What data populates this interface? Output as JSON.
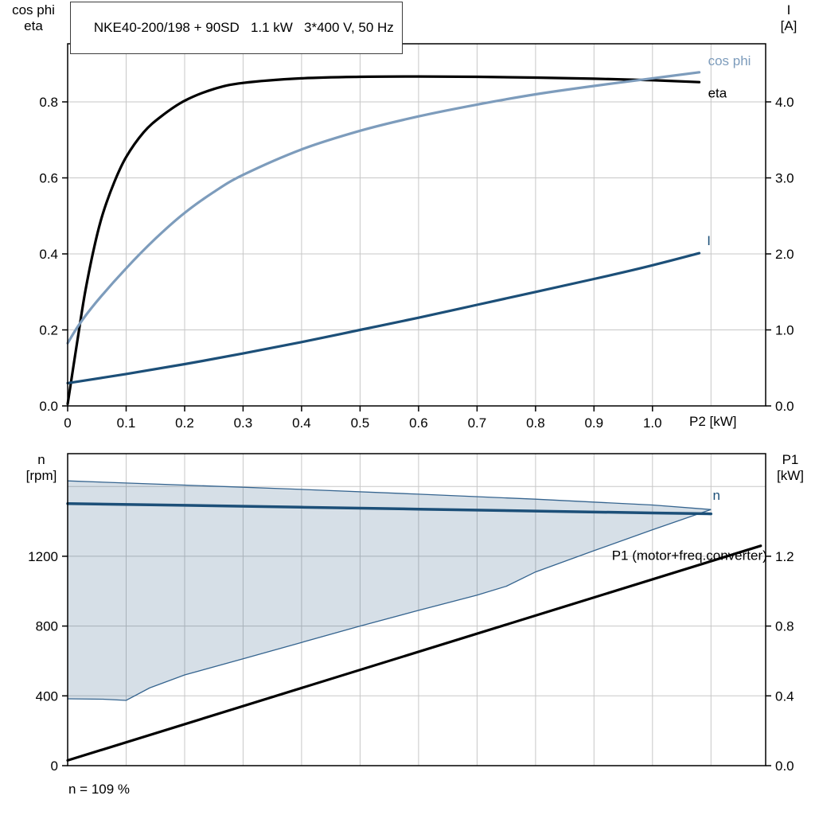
{
  "title_box": {
    "text": "NKE40-200/198 + 90SD   1.1 kW   3*400 V, 50 Hz"
  },
  "footnote": "n = 109 %",
  "colors": {
    "grid": "#c7c7c7",
    "axis": "#000000",
    "eta_black": "#000000",
    "cos_phi_blue": "#7d9cbc",
    "current_navy": "#1c4f78",
    "speed_navy": "#1c4f78",
    "band_fill": "rgba(28,79,120,0.18)",
    "band_edge": "#35648f"
  },
  "axes_corner_labels": {
    "top_left": {
      "line1": "cos phi",
      "line2": "eta"
    },
    "top_right": {
      "line1": "I",
      "line2": "[A]"
    },
    "bottom_left": {
      "line1": "n",
      "line2": "[rpm]"
    },
    "bottom_right": {
      "line1": "P1",
      "line2": "[kW]"
    }
  },
  "chart_data": [
    {
      "id": "top-chart",
      "type": "line",
      "title": "NKE40-200/198 + 90SD   1.1 kW   3*400 V, 50 Hz",
      "x_axis": {
        "label": "P2 [kW]",
        "range": [
          0,
          1.1935
        ],
        "ticks": [
          0,
          0.1,
          0.2,
          0.3,
          0.4,
          0.5,
          0.6,
          0.7,
          0.8,
          0.9,
          1.0
        ],
        "tick_labels": [
          "0",
          "0.1",
          "0.2",
          "0.3",
          "0.4",
          "0.5",
          "0.6",
          "0.7",
          "0.8",
          "0.9",
          "1.0"
        ],
        "grid": [
          0.1,
          0.2,
          0.3,
          0.4,
          0.5,
          0.6,
          0.7,
          0.8,
          0.9,
          1.0,
          1.1
        ]
      },
      "y_left_axis": {
        "label": "cos phi / eta",
        "range": [
          0,
          0.953
        ],
        "ticks": [
          0,
          0.2,
          0.4,
          0.6,
          0.8
        ],
        "tick_labels": [
          "0.0",
          "0.2",
          "0.4",
          "0.6",
          "0.8"
        ],
        "grid": [
          0.2,
          0.4,
          0.6,
          0.8
        ]
      },
      "y_right_axis": {
        "label": "I [A]",
        "range": [
          0,
          4.765
        ],
        "ticks": [
          0,
          1,
          2,
          3,
          4
        ],
        "tick_labels": [
          "0.0",
          "1.0",
          "2.0",
          "3.0",
          "4.0"
        ]
      },
      "series": [
        {
          "name": "eta",
          "axis": "left",
          "color_key": "eta_black",
          "width": 3.2,
          "smooth": true,
          "x": [
            0,
            0.01,
            0.02,
            0.03,
            0.045,
            0.06,
            0.08,
            0.1,
            0.13,
            0.16,
            0.2,
            0.25,
            0.3,
            0.4,
            0.5,
            0.6,
            0.7,
            0.8,
            0.9,
            1.0,
            1.08
          ],
          "y": [
            0.005,
            0.105,
            0.205,
            0.3,
            0.415,
            0.505,
            0.59,
            0.655,
            0.72,
            0.762,
            0.803,
            0.834,
            0.85,
            0.862,
            0.866,
            0.867,
            0.866,
            0.864,
            0.861,
            0.857,
            0.852
          ]
        },
        {
          "name": "cos phi",
          "axis": "left",
          "color_key": "cos_phi_blue",
          "width": 3.2,
          "smooth": true,
          "x": [
            0,
            0.02,
            0.05,
            0.1,
            0.15,
            0.2,
            0.25,
            0.3,
            0.4,
            0.5,
            0.6,
            0.7,
            0.8,
            0.9,
            1.0,
            1.08
          ],
          "y": [
            0.165,
            0.215,
            0.275,
            0.362,
            0.44,
            0.508,
            0.563,
            0.608,
            0.675,
            0.724,
            0.762,
            0.793,
            0.82,
            0.842,
            0.862,
            0.878
          ]
        },
        {
          "name": "I",
          "axis": "right",
          "color_key": "current_navy",
          "width": 3.2,
          "smooth": true,
          "x": [
            0,
            0.1,
            0.2,
            0.3,
            0.4,
            0.5,
            0.6,
            0.7,
            0.8,
            0.9,
            1.0,
            1.08
          ],
          "y": [
            0.3,
            0.42,
            0.55,
            0.69,
            0.84,
            1.0,
            1.16,
            1.33,
            1.5,
            1.67,
            1.85,
            2.01
          ]
        }
      ],
      "curve_labels": [
        {
          "text": "cos phi",
          "color_key": "cos_phi_blue",
          "axis": "left",
          "x": 1.095,
          "y": 0.896,
          "anchor": "start"
        },
        {
          "text": "eta",
          "color_key": "eta_black",
          "axis": "left",
          "x": 1.095,
          "y": 0.812,
          "anchor": "start"
        },
        {
          "text": "I",
          "color_key": "current_navy",
          "axis": "right",
          "x": 1.093,
          "y": 2.115,
          "anchor": "start"
        }
      ]
    },
    {
      "id": "bottom-chart",
      "type": "line",
      "title": "",
      "x_axis": {
        "label": "",
        "range": [
          0,
          1.1935
        ],
        "ticks": [],
        "tick_labels": [],
        "grid": [
          0.1,
          0.2,
          0.3,
          0.4,
          0.5,
          0.6,
          0.7,
          0.8,
          0.9,
          1.0,
          1.1
        ]
      },
      "y_left_axis": {
        "label": "n [rpm]",
        "range": [
          0,
          1788
        ],
        "ticks": [
          0,
          400,
          800,
          1200
        ],
        "tick_labels": [
          "0",
          "400",
          "800",
          "1200"
        ],
        "grid": [
          400,
          800,
          1200,
          1600
        ]
      },
      "y_right_axis": {
        "label": "P1 [kW]",
        "range": [
          0,
          1.788
        ],
        "ticks": [
          0,
          0.4,
          0.8,
          1.2
        ],
        "tick_labels": [
          "0.0",
          "0.4",
          "0.8",
          "1.2"
        ]
      },
      "band": {
        "name": "speed-control-range",
        "axis": "left",
        "upper": {
          "x": [
            0,
            0.2,
            0.4,
            0.6,
            0.8,
            1.0,
            1.1
          ],
          "y": [
            1632,
            1608,
            1583,
            1556,
            1527,
            1494,
            1468
          ]
        },
        "lower": {
          "x": [
            0,
            0.06,
            0.1,
            0.14,
            0.2,
            0.3,
            0.4,
            0.5,
            0.6,
            0.7,
            0.75,
            0.8,
            0.9,
            1.0,
            1.1
          ],
          "y": [
            383,
            381,
            374,
            445,
            520,
            612,
            706,
            800,
            890,
            977,
            1028,
            1110,
            1232,
            1352,
            1468
          ]
        }
      },
      "series": [
        {
          "name": "n",
          "axis": "left",
          "color_key": "speed_navy",
          "width": 3.5,
          "smooth": false,
          "x": [
            0,
            0.2,
            0.4,
            0.6,
            0.8,
            1.0,
            1.1
          ],
          "y": [
            1502,
            1492,
            1481,
            1470,
            1459,
            1448,
            1443
          ]
        },
        {
          "name": "P1 (motor+freq.converter)",
          "axis": "right",
          "color_key": "eta_black",
          "width": 3.2,
          "smooth": false,
          "x": [
            0,
            1.185
          ],
          "y": [
            0.03,
            1.26
          ]
        }
      ],
      "curve_labels": [
        {
          "text": "n",
          "color_key": "current_navy",
          "axis": "left",
          "x": 1.103,
          "y": 1523,
          "anchor": "start"
        },
        {
          "text": "P1 (motor+freq.converter)",
          "color_key": "eta_black",
          "axis": "left",
          "x": 1.196,
          "y": 1180,
          "anchor": "end"
        }
      ]
    }
  ]
}
